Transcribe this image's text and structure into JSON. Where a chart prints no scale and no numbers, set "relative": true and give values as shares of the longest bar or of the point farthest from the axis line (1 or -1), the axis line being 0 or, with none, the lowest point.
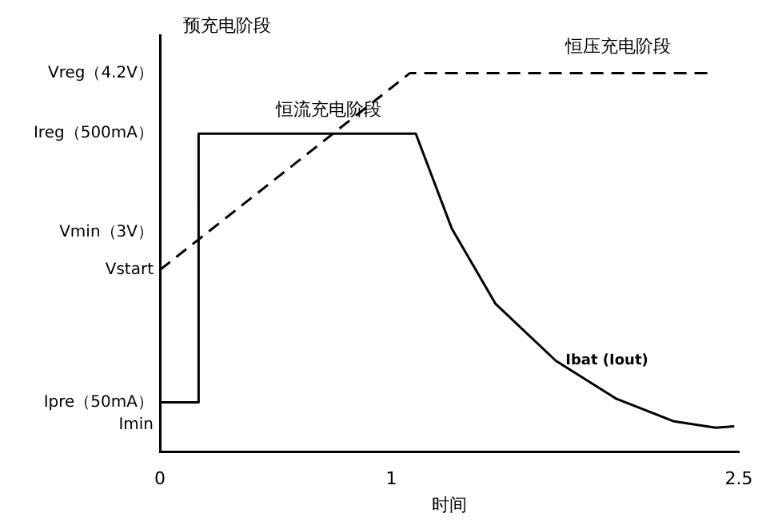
{
  "chart_data": {
    "type": "line",
    "relative": true,
    "tick_labels": "x",
    "xlabel": "时间",
    "xlim": [
      0,
      2.5
    ],
    "xticks": [
      0,
      1,
      2.5
    ],
    "legend": false,
    "marker": "none",
    "grid": false,
    "series": [
      {
        "name": "Ibat (Iout)",
        "color": "#000000",
        "line_style": "solid",
        "x": [
          0,
          0.167,
          0.167,
          1.105,
          1.26,
          1.45,
          1.71,
          1.97,
          2.22,
          2.4,
          2.48
        ],
        "values": [
          0.13,
          0.13,
          0.84,
          0.84,
          0.59,
          0.39,
          0.24,
          0.14,
          0.08,
          0.063,
          0.067
        ]
      },
      {
        "color": "#000000",
        "line_style": "dashed",
        "x": [
          0,
          1.08,
          2.38
        ],
        "values": [
          0.48,
          1,
          1
        ]
      }
    ],
    "annotations": [
      "Vreg（4.2V）",
      "Ireg（500mA）",
      "Vmin（3V）",
      "Vstart",
      "Ipre（50mA）",
      "Imin",
      "预充电阶段",
      "恒流充电阶段",
      "恒压充电阶段"
    ]
  }
}
